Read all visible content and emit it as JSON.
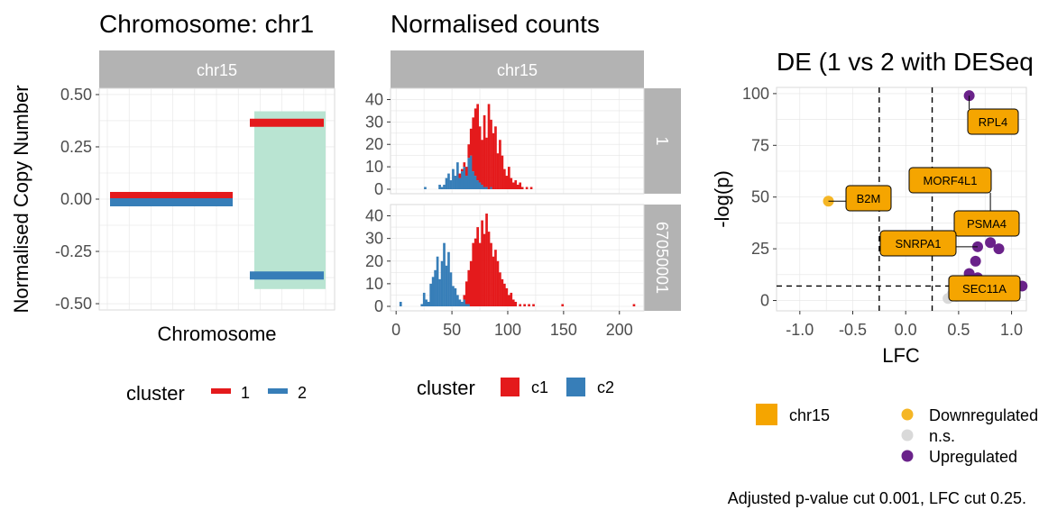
{
  "colors": {
    "c1": "#E41A1C",
    "c2": "#377EB8",
    "band": "#B9E4D2",
    "strip": "#B3B3B3",
    "grid": "#E5E5E5",
    "downregulated": "#F5B625",
    "ns": "#D9D9D9",
    "upregulated": "#6A228A",
    "highlight": "#F5A500"
  },
  "chart_data": [
    {
      "type": "line",
      "title": "Chromosome: chr1",
      "facet": "chr15",
      "xlabel": "Chromosome",
      "ylabel": "Normalised Copy Number",
      "ylim": [
        -0.53,
        0.53
      ],
      "yticks": [
        "0.50",
        "0.25",
        "0.00",
        "-0.25",
        "-0.50"
      ],
      "ytick_values": [
        0.5,
        0.25,
        0.0,
        -0.25,
        -0.5
      ],
      "shaded_region": {
        "x": [
          0.69,
          1.0
        ],
        "y": [
          -0.43,
          0.42
        ]
      },
      "series": [
        {
          "name": "1",
          "segments": [
            {
              "x": [
                0,
                0.5
              ],
              "y": 0.015
            },
            {
              "x": [
                0.69,
                1.0
              ],
              "y": 0.365
            }
          ]
        },
        {
          "name": "2",
          "segments": [
            {
              "x": [
                0,
                0.5
              ],
              "y": -0.015
            },
            {
              "x": [
                0.69,
                1.0
              ],
              "y": -0.365
            }
          ]
        }
      ],
      "legend": {
        "title": "cluster",
        "entries": [
          "1",
          "2"
        ],
        "position": "bottom"
      }
    },
    {
      "type": "bar",
      "title": "Normalised counts",
      "facet": "chr15",
      "row_facets": [
        "1",
        "67050001"
      ],
      "xlim": [
        -5,
        222
      ],
      "ylim": [
        0,
        43
      ],
      "xticks": [
        "0",
        "50",
        "100",
        "150",
        "200"
      ],
      "xtick_values": [
        0,
        50,
        100,
        150,
        200
      ],
      "yticks": [
        "40",
        "30",
        "20",
        "10",
        "0"
      ],
      "ytick_values": [
        40,
        30,
        20,
        10,
        0
      ],
      "binwidth": 2,
      "panels": [
        {
          "row": "1",
          "series": [
            {
              "name": "c2",
              "bins": [
                [
                  25,
                  1
                ],
                [
                  38,
                  2
                ],
                [
                  40,
                  1
                ],
                [
                  42,
                  2
                ],
                [
                  44,
                  5
                ],
                [
                  46,
                  7
                ],
                [
                  48,
                  4
                ],
                [
                  50,
                  9
                ],
                [
                  52,
                  6
                ],
                [
                  54,
                  12
                ],
                [
                  56,
                  5
                ],
                [
                  58,
                  8
                ],
                [
                  60,
                  10
                ],
                [
                  62,
                  6
                ],
                [
                  64,
                  14
                ],
                [
                  66,
                  15
                ],
                [
                  68,
                  8
                ],
                [
                  70,
                  6
                ],
                [
                  72,
                  4
                ],
                [
                  74,
                  3
                ],
                [
                  76,
                  2
                ],
                [
                  78,
                  1
                ],
                [
                  80,
                  1
                ],
                [
                  84,
                  1
                ]
              ]
            },
            {
              "name": "c1",
              "bins": [
                [
                  56,
                  2
                ],
                [
                  58,
                  1
                ],
                [
                  60,
                  2
                ],
                [
                  62,
                  4
                ],
                [
                  64,
                  6
                ],
                [
                  66,
                  12
                ],
                [
                  68,
                  24
                ],
                [
                  70,
                  30
                ],
                [
                  72,
                  34
                ],
                [
                  74,
                  25
                ],
                [
                  76,
                  20
                ],
                [
                  78,
                  32
                ],
                [
                  80,
                  22
                ],
                [
                  82,
                  38
                ],
                [
                  84,
                  30
                ],
                [
                  86,
                  25
                ],
                [
                  88,
                  28
                ],
                [
                  90,
                  16
                ],
                [
                  92,
                  22
                ],
                [
                  94,
                  15
                ],
                [
                  96,
                  9
                ],
                [
                  98,
                  6
                ],
                [
                  100,
                  10
                ],
                [
                  102,
                  5
                ],
                [
                  104,
                  3
                ],
                [
                  106,
                  4
                ],
                [
                  108,
                  2
                ],
                [
                  110,
                  3
                ],
                [
                  112,
                  1
                ],
                [
                  116,
                  1
                ],
                [
                  120,
                  1
                ]
              ]
            }
          ]
        },
        {
          "row": "67050001",
          "series": [
            {
              "name": "c2",
              "bins": [
                [
                  3,
                  2
                ],
                [
                  22,
                  1
                ],
                [
                  24,
                  6
                ],
                [
                  26,
                  3
                ],
                [
                  28,
                  2
                ],
                [
                  30,
                  10
                ],
                [
                  32,
                  13
                ],
                [
                  34,
                  16
                ],
                [
                  36,
                  22
                ],
                [
                  38,
                  12
                ],
                [
                  40,
                  20
                ],
                [
                  42,
                  28
                ],
                [
                  44,
                  18
                ],
                [
                  46,
                  24
                ],
                [
                  48,
                  15
                ],
                [
                  50,
                  9
                ],
                [
                  52,
                  8
                ],
                [
                  54,
                  5
                ],
                [
                  56,
                  3
                ],
                [
                  58,
                  2
                ],
                [
                  60,
                  3
                ],
                [
                  62,
                  1
                ],
                [
                  64,
                  1
                ]
              ]
            },
            {
              "name": "c1",
              "bins": [
                [
                  60,
                  2
                ],
                [
                  62,
                  10
                ],
                [
                  64,
                  15
                ],
                [
                  66,
                  20
                ],
                [
                  68,
                  28
                ],
                [
                  70,
                  30
                ],
                [
                  72,
                  35
                ],
                [
                  74,
                  28
                ],
                [
                  76,
                  38
                ],
                [
                  78,
                  32
                ],
                [
                  80,
                  41
                ],
                [
                  82,
                  33
                ],
                [
                  84,
                  28
                ],
                [
                  86,
                  22
                ],
                [
                  88,
                  25
                ],
                [
                  90,
                  20
                ],
                [
                  92,
                  15
                ],
                [
                  94,
                  12
                ],
                [
                  96,
                  10
                ],
                [
                  98,
                  8
                ],
                [
                  100,
                  5
                ],
                [
                  102,
                  6
                ],
                [
                  104,
                  3
                ],
                [
                  106,
                  2
                ],
                [
                  110,
                  1
                ],
                [
                  114,
                  1
                ],
                [
                  118,
                  1
                ],
                [
                  122,
                  1
                ],
                [
                  148,
                  1
                ],
                [
                  212,
                  1
                ]
              ]
            }
          ]
        }
      ],
      "legend": {
        "title": "cluster",
        "entries": [
          "c1",
          "c2"
        ],
        "position": "bottom"
      }
    },
    {
      "type": "scatter",
      "title": "DE (1 vs 2 with DESeq",
      "xlabel": "LFC",
      "ylabel": "-log(p)",
      "xlim": [
        -1.22,
        1.14
      ],
      "ylim": [
        -5,
        103
      ],
      "xticks": [
        "-1.0",
        "-0.5",
        "0.0",
        "0.5",
        "1.0"
      ],
      "xtick_values": [
        -1.0,
        -0.5,
        0.0,
        0.5,
        1.0
      ],
      "yticks": [
        "100",
        "75",
        "50",
        "25",
        "0"
      ],
      "ytick_values": [
        100,
        75,
        50,
        25,
        0
      ],
      "vlines": [
        -0.25,
        0.25
      ],
      "hline": 7,
      "points": [
        {
          "x": -0.73,
          "y": 48,
          "group": "Downregulated"
        },
        {
          "x": 0.6,
          "y": 99,
          "group": "Upregulated"
        },
        {
          "x": 0.8,
          "y": 40,
          "group": "Upregulated"
        },
        {
          "x": 0.78,
          "y": 35,
          "group": "Upregulated"
        },
        {
          "x": 0.8,
          "y": 28,
          "group": "Upregulated"
        },
        {
          "x": 0.88,
          "y": 25,
          "group": "Upregulated"
        },
        {
          "x": 0.68,
          "y": 26,
          "group": "Upregulated"
        },
        {
          "x": 0.66,
          "y": 19,
          "group": "Upregulated"
        },
        {
          "x": 0.6,
          "y": 13,
          "group": "Upregulated"
        },
        {
          "x": 0.68,
          "y": 11,
          "group": "Upregulated"
        },
        {
          "x": 1.1,
          "y": 7,
          "group": "Upregulated"
        },
        {
          "x": 0.44,
          "y": 3,
          "group": "n.s."
        },
        {
          "x": 0.4,
          "y": 1,
          "group": "n.s."
        },
        {
          "x": 0.5,
          "y": 5,
          "group": "n.s."
        },
        {
          "x": 0.48,
          "y": 2,
          "group": "n.s."
        }
      ],
      "labels": [
        {
          "text": "RPL4",
          "point": 1
        },
        {
          "text": "B2M",
          "point": 0
        },
        {
          "text": "MORF4L1",
          "point": 2
        },
        {
          "text": "PSMA4",
          "point": 3
        },
        {
          "text": "SNRPA1",
          "point": 6
        },
        {
          "text": "SEC11A",
          "point": 9
        }
      ],
      "legend_fill": {
        "entries": [
          "chr15"
        ]
      },
      "legend_points": {
        "entries": [
          "Downregulated",
          "n.s.",
          "Upregulated"
        ]
      },
      "caption": "Adjusted p-value cut 0.001, LFC cut 0.25."
    }
  ]
}
